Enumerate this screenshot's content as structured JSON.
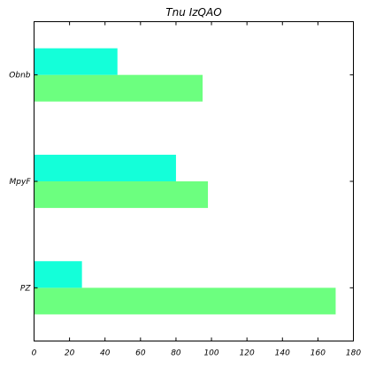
{
  "chart_data": {
    "type": "bar",
    "orientation": "horizontal",
    "title": "Tnu  IzQAO",
    "xlabel": "",
    "ylabel": "",
    "categories": [
      "PZ",
      "MpyF",
      "Obnb"
    ],
    "series": [
      {
        "color": "#6cff7f",
        "values": [
          170,
          98,
          95
        ]
      },
      {
        "color": "#14ffd9",
        "values": [
          27,
          80,
          47
        ]
      }
    ],
    "xlim": [
      0,
      180
    ],
    "xticks": [
      0,
      20,
      40,
      60,
      80,
      100,
      120,
      140,
      160,
      180
    ],
    "grid": false,
    "legend": "none"
  }
}
